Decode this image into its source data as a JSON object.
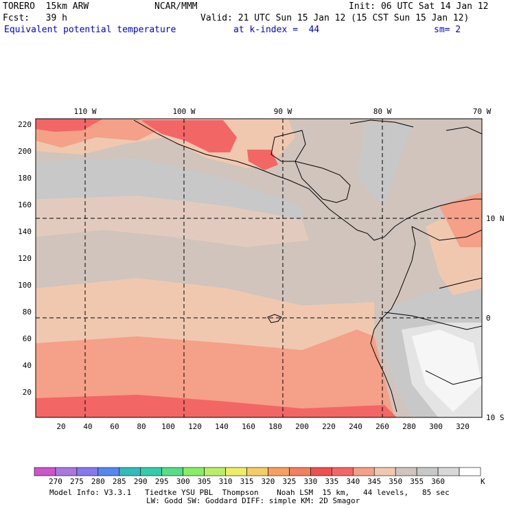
{
  "header": {
    "model": "TORERO  15km ARW",
    "org": "NCAR/MMM",
    "init": "Init: 06 UTC Sat 14 Jan 12",
    "fcst": "Fcst:   39 h",
    "valid": "Valid: 21 UTC Sun 15 Jan 12 (15 CST Sun 15 Jan 12)",
    "field": "Equivalent potential temperature",
    "level": "at k-index =  44",
    "smooth": "sm= 2"
  },
  "map": {
    "lon_labels": [
      "110 W",
      "100 W",
      "90 W",
      "80 W",
      "70 W"
    ],
    "lat_labels": [
      "10 N",
      "0",
      "10 S"
    ],
    "y_ticks": [
      "220",
      "200",
      "180",
      "160",
      "140",
      "120",
      "100",
      "80",
      "60",
      "40",
      "20"
    ],
    "x_ticks": [
      "20",
      "40",
      "60",
      "80",
      "100",
      "120",
      "140",
      "160",
      "180",
      "200",
      "220",
      "240",
      "260",
      "280",
      "300",
      "320"
    ]
  },
  "colorbar": {
    "colors": [
      "#cc55cc",
      "#aa77dd",
      "#8877ee",
      "#5588ee",
      "#33bbbb",
      "#33ccaa",
      "#55dd88",
      "#88ee66",
      "#bbee66",
      "#eeee66",
      "#f5cc66",
      "#f5a060",
      "#f08060",
      "#ee5050",
      "#f36666",
      "#f5a088",
      "#f0c8b0",
      "#d0c4bc",
      "#c8c8c8",
      "#d8d8d8",
      "#ffffff"
    ],
    "labels": [
      "270",
      "275",
      "280",
      "285",
      "290",
      "295",
      "300",
      "305",
      "310",
      "315",
      "320",
      "325",
      "330",
      "335",
      "340",
      "345",
      "350",
      "355",
      "360"
    ],
    "unit": "K"
  },
  "footer": {
    "line1": "Model Info: V3.3.1   Tiedtke YSU PBL  Thompson    Noah LSM  15 km,   44 levels,   85 sec",
    "line2": "LW: Godd SW: Goddard DIFF: simple KM: 2D Smagor"
  }
}
